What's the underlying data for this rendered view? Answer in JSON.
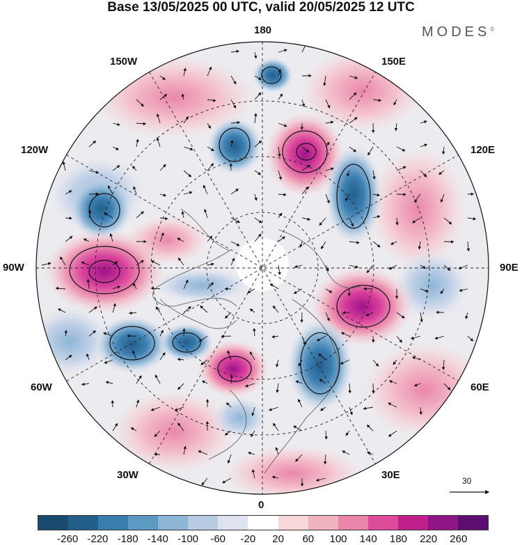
{
  "header": {
    "title": "Base 13/05/2025 00 UTC, valid 20/05/2025 12 UTC",
    "brand": "MODES",
    "brand_mark": "©"
  },
  "map": {
    "projection": "north polar stereographic",
    "longitude_labels": {
      "top": "180",
      "bottom": "0",
      "left": "90W",
      "right": "90E",
      "lon_150w": "150W",
      "lon_150e": "150E",
      "lon_120w": "120W",
      "lon_120e": "120E",
      "lon_60w": "60W",
      "lon_60e": "60E",
      "lon_30w": "30W",
      "lon_30e": "30E"
    },
    "reference_vector_label": "30",
    "anomaly_centers": [
      {
        "sign": "positive",
        "near_lon": "150E",
        "intensity": "strong"
      },
      {
        "sign": "positive",
        "near_lon": "90W",
        "intensity": "strong"
      },
      {
        "sign": "positive",
        "near_lon": "60E",
        "intensity": "strong"
      },
      {
        "sign": "positive",
        "near_lon": "30W",
        "intensity": "moderate"
      },
      {
        "sign": "negative",
        "near_lon": "120E",
        "intensity": "moderate"
      },
      {
        "sign": "negative",
        "near_lon": "160W",
        "intensity": "moderate"
      },
      {
        "sign": "negative",
        "near_lon": "45E",
        "intensity": "strong"
      },
      {
        "sign": "negative",
        "near_lon": "60W",
        "intensity": "strong"
      }
    ]
  },
  "colorbar": {
    "labels": [
      "-260",
      "-220",
      "-180",
      "-140",
      "-100",
      "-60",
      "-20",
      "20",
      "60",
      "100",
      "140",
      "180",
      "220",
      "260"
    ],
    "colors": [
      "#1a4a6e",
      "#245e8a",
      "#3a7eb0",
      "#5c9ac4",
      "#8db5d6",
      "#b8cbe3",
      "#dfe3ef",
      "#ffffff",
      "#f6d8da",
      "#f2b3c0",
      "#ea86ab",
      "#dd4c9a",
      "#c0208c",
      "#8e1687",
      "#5c0e73"
    ]
  }
}
